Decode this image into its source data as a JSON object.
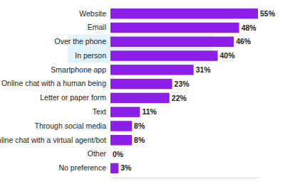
{
  "chart_data": {
    "type": "bar",
    "orientation": "horizontal",
    "categories": [
      "Website",
      "Email",
      "Over the phone",
      "In person",
      "Smartphone app",
      "Online chat with a human being",
      "Letter or paper form",
      "Text",
      "Through social media",
      "Online chat with a virtual agent/bot",
      "Other",
      "No preference"
    ],
    "values": [
      55,
      48,
      46,
      40,
      31,
      23,
      22,
      11,
      8,
      8,
      0,
      3
    ],
    "value_labels": [
      "55%",
      "48%",
      "46%",
      "40%",
      "31%",
      "23%",
      "22%",
      "11%",
      "8%",
      "8%",
      "0%",
      "3%"
    ],
    "color": "#8b1fe8",
    "xlim": [
      0,
      55
    ],
    "data_labels": true,
    "tick_labels": "y",
    "grid": false
  }
}
